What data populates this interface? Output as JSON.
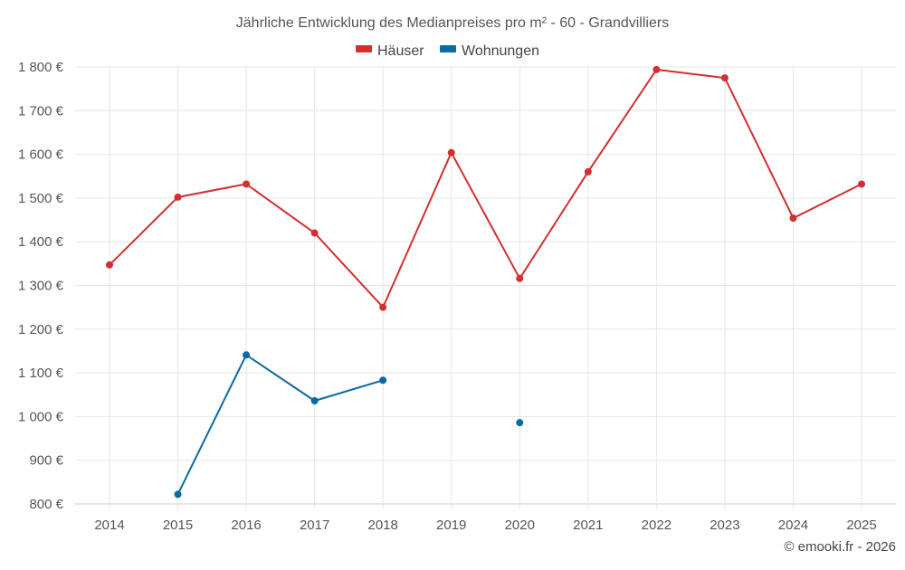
{
  "colors": {
    "haeuser": "#d32f2f",
    "wohnungen": "#0b6aa2",
    "grid": "#e6e6e6",
    "axis": "#cccccc"
  },
  "legend": {
    "items": [
      {
        "name": "Häuser",
        "color": "#d32f2f"
      },
      {
        "name": "Wohnungen",
        "color": "#0b6aa2"
      }
    ],
    "placement": "top-center"
  },
  "credit": "© emooki.fr - 2026",
  "chart_data": {
    "type": "line",
    "title": "Jährliche Entwicklung des Medianpreises pro m² - 60 - Grandvilliers",
    "xlabel": "",
    "ylabel": "",
    "categories": [
      "2014",
      "2015",
      "2016",
      "2017",
      "2018",
      "2019",
      "2020",
      "2021",
      "2022",
      "2023",
      "2024",
      "2025"
    ],
    "ylim": [
      800,
      1800
    ],
    "yticks": [
      800,
      900,
      1000,
      1100,
      1200,
      1300,
      1400,
      1500,
      1600,
      1700,
      1800
    ],
    "ytick_labels": [
      "800 €",
      "900 €",
      "1 000 €",
      "1 100 €",
      "1 200 €",
      "1 300 €",
      "1 400 €",
      "1 500 €",
      "1 600 €",
      "1 700 €",
      "1 800 €"
    ],
    "grid": true,
    "series": [
      {
        "name": "Häuser",
        "color": "#d32f2f",
        "values": [
          1347,
          1502,
          1532,
          1420,
          1250,
          1604,
          1316,
          1560,
          1794,
          1775,
          1454,
          1532
        ]
      },
      {
        "name": "Wohnungen",
        "color": "#0b6aa2",
        "values": [
          null,
          822,
          1141,
          1036,
          1083,
          null,
          986,
          null,
          null,
          null,
          null,
          null
        ]
      }
    ]
  }
}
